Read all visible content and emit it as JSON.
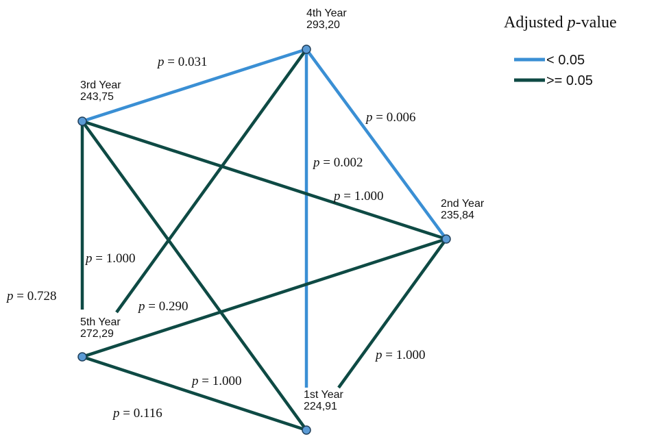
{
  "legend": {
    "title": [
      "Adjusted ",
      "p",
      "-value"
    ],
    "items": [
      {
        "label": "< 0.05",
        "color": "#3a8fd4"
      },
      {
        "label": ">= 0.05",
        "color": "#0e4a44"
      }
    ]
  },
  "nodes": [
    {
      "name": "4th Year",
      "value": "293,20"
    },
    {
      "name": "3rd Year",
      "value": "243,75"
    },
    {
      "name": "2nd Year",
      "value": "235,84"
    },
    {
      "name": "5th Year",
      "value": "272,29"
    },
    {
      "name": "1st Year",
      "value": "224,91"
    }
  ],
  "edges": [
    {
      "from": 1,
      "to": 0,
      "group": 0,
      "label": [
        "p",
        " = 0.031"
      ]
    },
    {
      "from": 0,
      "to": 2,
      "group": 0,
      "label": [
        "p",
        " = 0.006"
      ]
    },
    {
      "from": 0,
      "to": 4,
      "group": 0,
      "label": [
        "p",
        " = 0.002"
      ]
    },
    {
      "from": 1,
      "to": 2,
      "group": 1,
      "label": [
        "p",
        " = 1.000"
      ]
    },
    {
      "from": 1,
      "to": 3,
      "group": 1,
      "label": [
        "p",
        " = 0.728"
      ]
    },
    {
      "from": 0,
      "to": 3,
      "group": 1,
      "label": [
        "p",
        " = 1.000"
      ]
    },
    {
      "from": 1,
      "to": 4,
      "group": 1,
      "label": [
        "p",
        " = 1.000"
      ]
    },
    {
      "from": 3,
      "to": 2,
      "group": 1,
      "label": [
        "p",
        " = 0.290"
      ]
    },
    {
      "from": 2,
      "to": 4,
      "group": 1,
      "label": [
        "p",
        " = 1.000"
      ]
    },
    {
      "from": 3,
      "to": 4,
      "group": 1,
      "label": [
        "p",
        " = 0.116"
      ]
    }
  ]
}
